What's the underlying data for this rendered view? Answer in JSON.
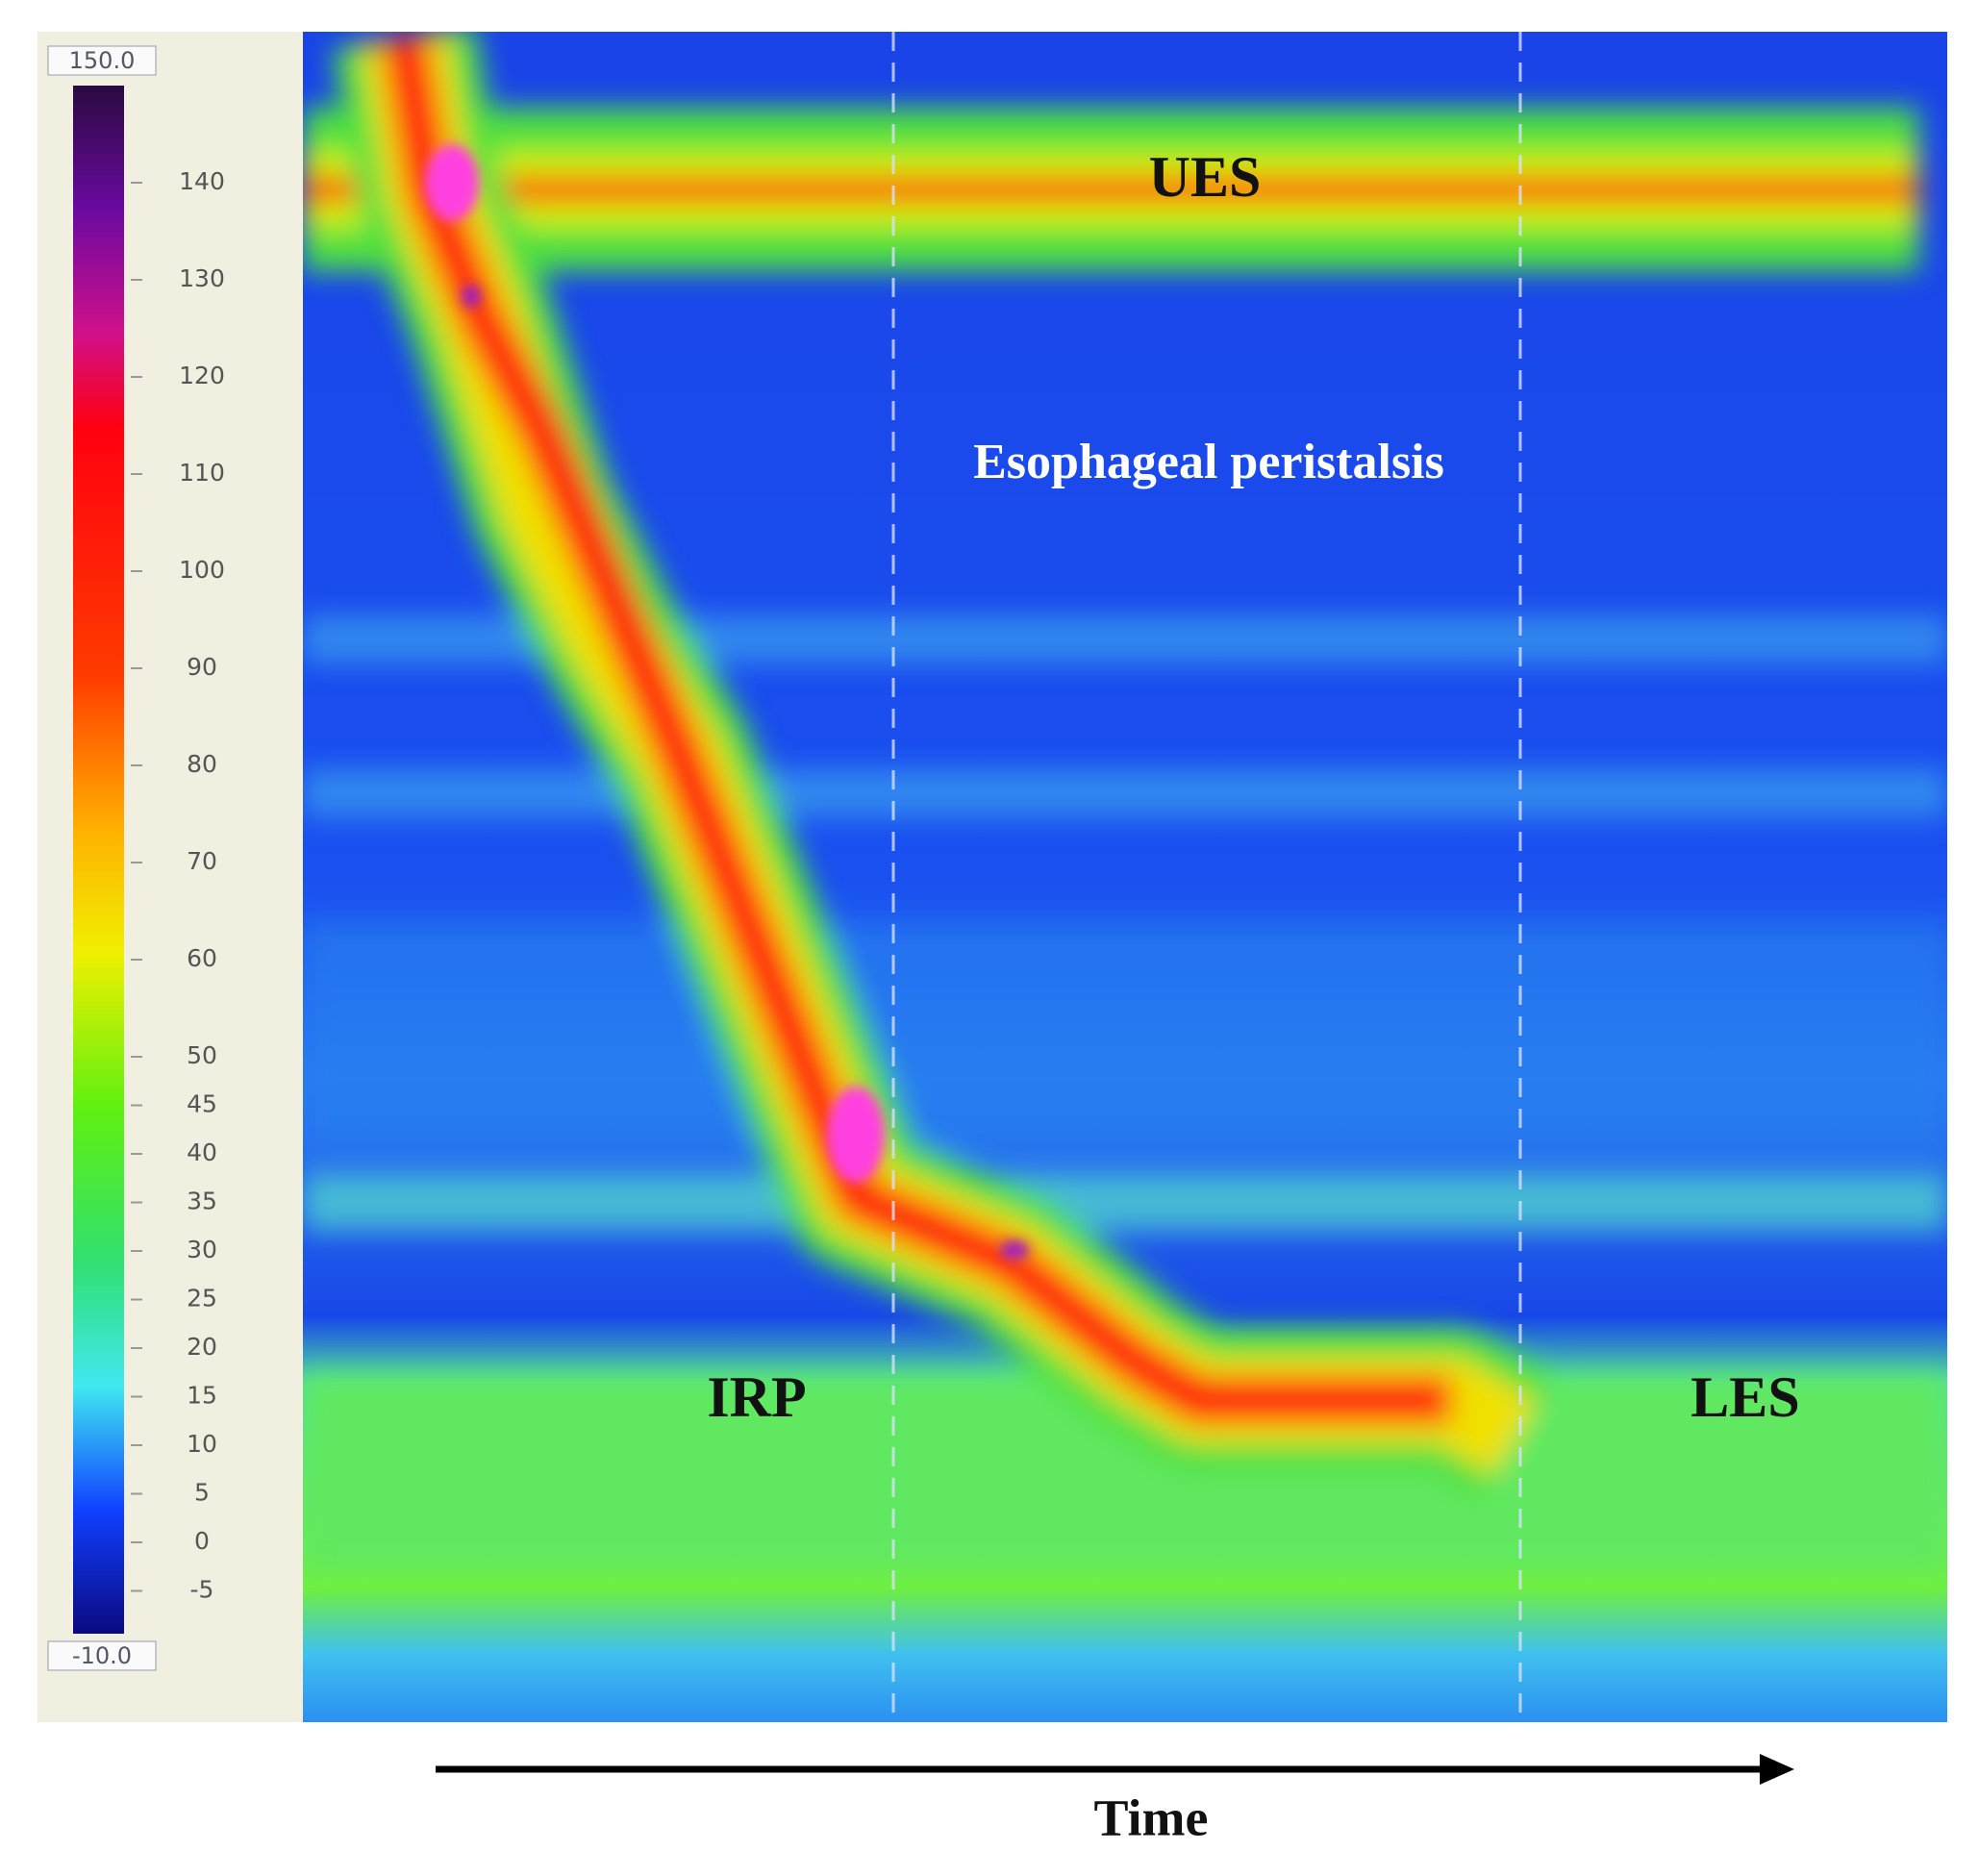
{
  "colorbar": {
    "max_label": "150.0",
    "min_label": "-10.0",
    "ticks": [
      140,
      130,
      120,
      110,
      100,
      90,
      80,
      70,
      60,
      50,
      45,
      40,
      35,
      30,
      25,
      20,
      15,
      10,
      5,
      0,
      -5
    ]
  },
  "annotations": {
    "ues": "UES",
    "peristalsis": "Esophageal peristalsis",
    "irp": "IRP",
    "les": "LES"
  },
  "x_axis_label": "Time"
}
